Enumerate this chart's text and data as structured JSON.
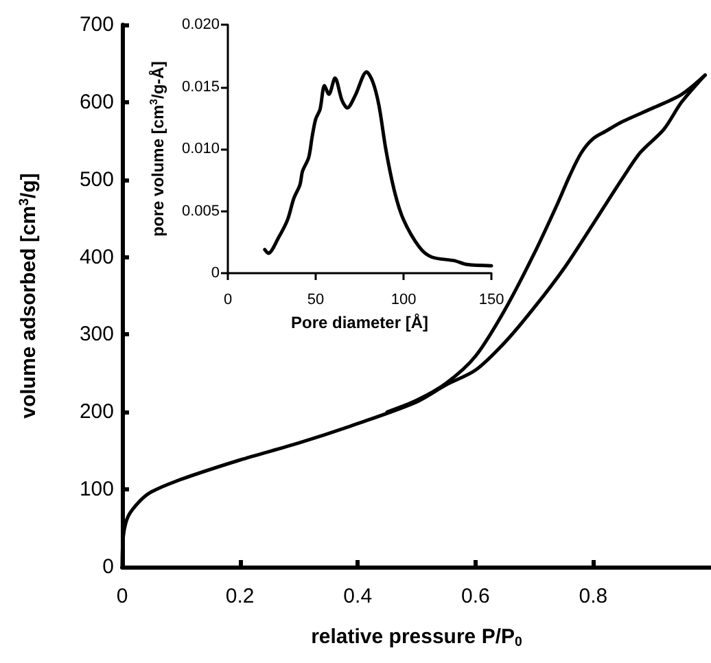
{
  "chart_data": [
    {
      "type": "line",
      "xlabel": "relative pressure P/P$_{0}$",
      "ylabel": "volume adsorbed [cm$^{3}$/g]",
      "xlim": [
        0,
        1
      ],
      "ylim": [
        0,
        700
      ],
      "xticks": [
        0,
        0.2,
        0.4,
        0.6,
        0.8
      ],
      "yticks": [
        0,
        100,
        200,
        300,
        400,
        500,
        600,
        700
      ],
      "grid": false,
      "marker": "none",
      "line_style": "solid",
      "series": [
        {
          "color": "#000000",
          "x": [
            0,
            0.002,
            0.01,
            0.03,
            0.05,
            0.1,
            0.2,
            0.3,
            0.4,
            0.5,
            0.55,
            0.6,
            0.65,
            0.7,
            0.75,
            0.8,
            0.85,
            0.88,
            0.92,
            0.95,
            0.99
          ],
          "values": [
            0,
            40,
            65,
            85,
            97,
            113,
            138,
            160,
            185,
            213,
            235,
            254,
            290,
            335,
            385,
            443,
            502,
            535,
            565,
            600,
            635
          ]
        },
        {
          "color": "#000000",
          "x": [
            0.99,
            0.95,
            0.9,
            0.85,
            0.82,
            0.8,
            0.78,
            0.76,
            0.74,
            0.7,
            0.65,
            0.6,
            0.55,
            0.5,
            0.45
          ],
          "values": [
            635,
            610,
            592,
            575,
            562,
            553,
            535,
            505,
            470,
            405,
            332,
            272,
            237,
            215,
            200
          ]
        }
      ]
    },
    {
      "type": "line",
      "xlabel": "Pore diameter [Å]",
      "ylabel": "pore volume [cm$^{3}$/g-Å]",
      "xlim": [
        0,
        150
      ],
      "ylim": [
        0,
        0.02
      ],
      "xticks": [
        0,
        50,
        100,
        150
      ],
      "yticks": [
        0,
        0.005,
        {
          "value": 0.01,
          "label": "0.010"
        },
        0.015,
        {
          "value": 0.02,
          "label": "0.020"
        }
      ],
      "grid": false,
      "marker": "none",
      "line_style": "solid",
      "series": [
        {
          "color": "#000000",
          "x": [
            21,
            23,
            29,
            34,
            37.5,
            41,
            42.5,
            46,
            48,
            50,
            52.5,
            55,
            57.5,
            61,
            65,
            68,
            72.5,
            79,
            82.5,
            86,
            90,
            95,
            100,
            109,
            116,
            129,
            136,
            150
          ],
          "values": [
            0.0019,
            0.0016,
            0.0029,
            0.0043,
            0.006,
            0.0071,
            0.0082,
            0.0093,
            0.011,
            0.0124,
            0.0132,
            0.0151,
            0.0144,
            0.0157,
            0.0139,
            0.0133,
            0.0143,
            0.0162,
            0.0154,
            0.0135,
            0.0099,
            0.0065,
            0.0043,
            0.0021,
            0.0013,
            0.001,
            0.0007,
            0.0006
          ]
        }
      ]
    }
  ]
}
